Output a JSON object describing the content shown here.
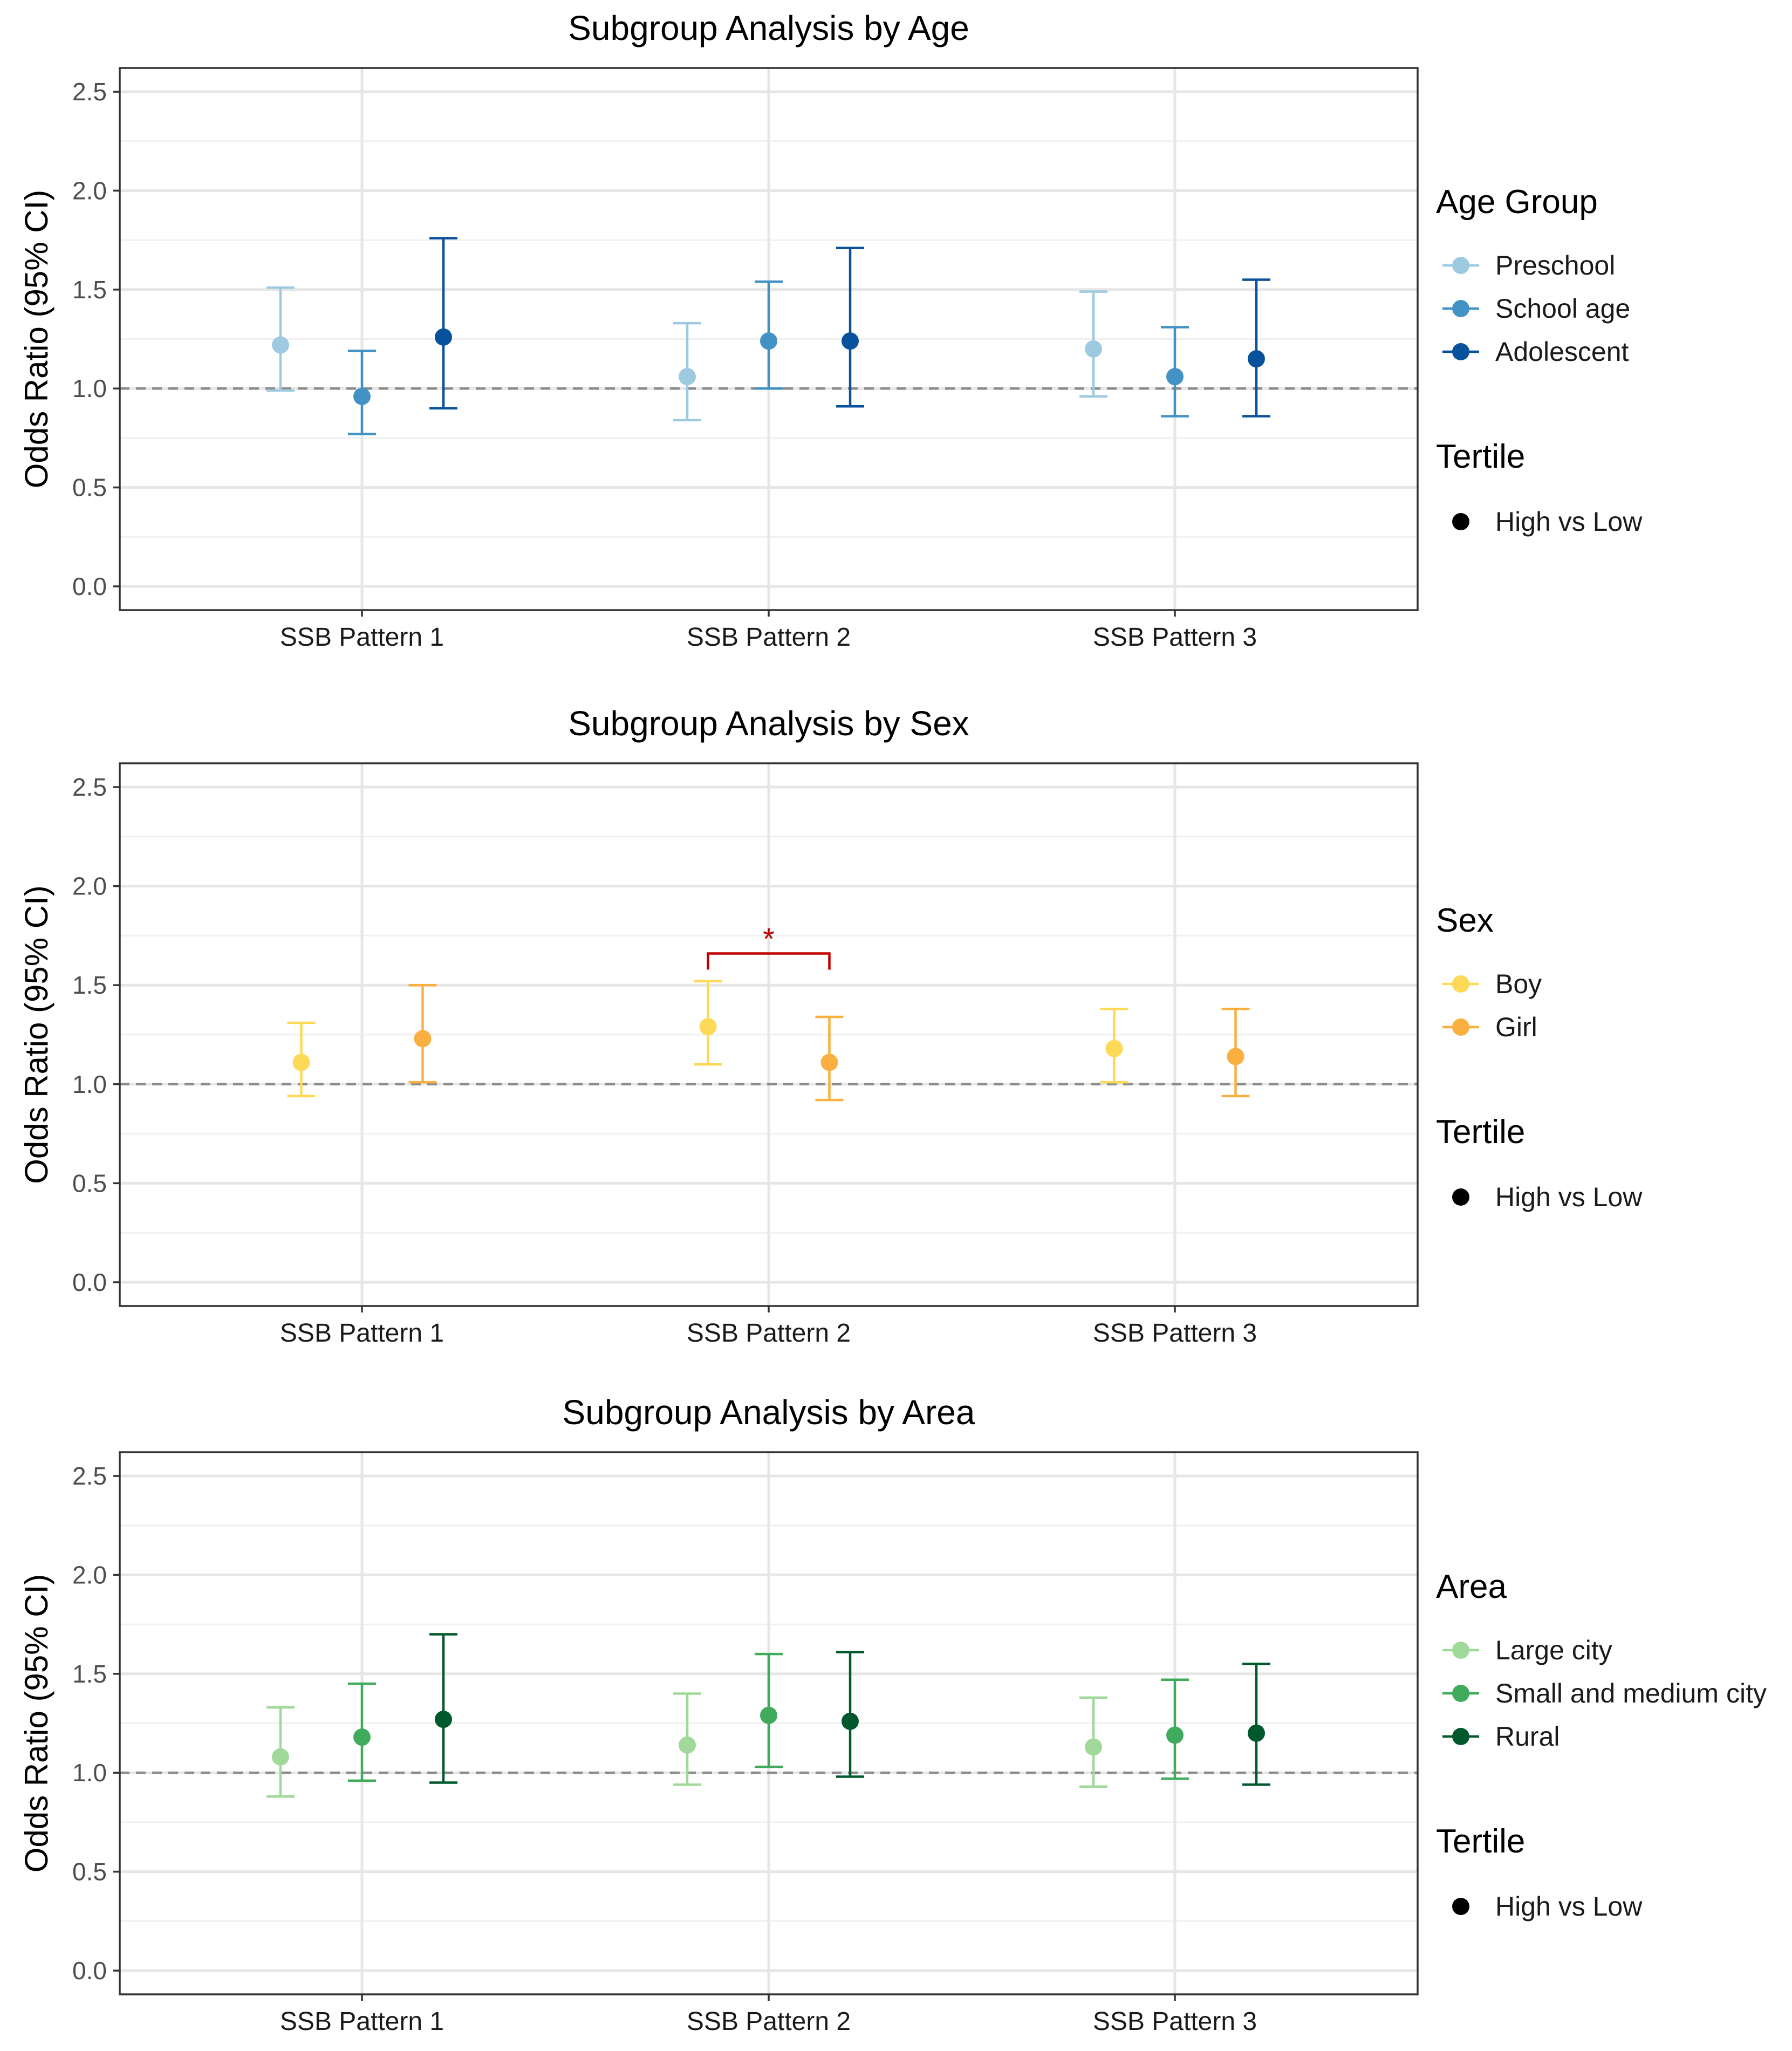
{
  "chart_data": [
    {
      "type": "errorbar",
      "title": "Subgroup Analysis by Age",
      "xlabel": "",
      "ylabel": "Odds Ratio (95% CI)",
      "ylim": [
        -0.12,
        2.62
      ],
      "yticks": [
        "0.0",
        "0.5",
        "1.0",
        "1.5",
        "2.0",
        "2.5"
      ],
      "reference_line": 1.0,
      "categories": [
        "SSB Pattern 1",
        "SSB Pattern 2",
        "SSB Pattern 3"
      ],
      "legend_title": "Age Group",
      "legend_position": "right",
      "series": [
        {
          "name": "Preschool",
          "color": "#9ecae1",
          "values": [
            1.22,
            1.06,
            1.2
          ],
          "lower": [
            0.99,
            0.84,
            0.96
          ],
          "upper": [
            1.51,
            1.33,
            1.49
          ]
        },
        {
          "name": "School age",
          "color": "#4292c6",
          "values": [
            0.96,
            1.24,
            1.06
          ],
          "lower": [
            0.77,
            1.0,
            0.86
          ],
          "upper": [
            1.19,
            1.54,
            1.31
          ]
        },
        {
          "name": "Adolescent",
          "color": "#08519c",
          "values": [
            1.26,
            1.24,
            1.15
          ],
          "lower": [
            0.9,
            0.91,
            0.86
          ],
          "upper": [
            1.76,
            1.71,
            1.55
          ]
        }
      ],
      "shape_legend_title": "Tertile",
      "shape_legend_item": "High vs Low",
      "annotations": []
    },
    {
      "type": "errorbar",
      "title": "Subgroup Analysis by Sex",
      "xlabel": "",
      "ylabel": "Odds Ratio (95% CI)",
      "ylim": [
        -0.12,
        2.62
      ],
      "yticks": [
        "0.0",
        "0.5",
        "1.0",
        "1.5",
        "2.0",
        "2.5"
      ],
      "reference_line": 1.0,
      "categories": [
        "SSB Pattern 1",
        "SSB Pattern 2",
        "SSB Pattern 3"
      ],
      "legend_title": "Sex",
      "legend_position": "right",
      "series": [
        {
          "name": "Boy",
          "color": "#fed957",
          "values": [
            1.11,
            1.29,
            1.18
          ],
          "lower": [
            0.94,
            1.1,
            1.01
          ],
          "upper": [
            1.31,
            1.52,
            1.38
          ]
        },
        {
          "name": "Girl",
          "color": "#f9b040",
          "values": [
            1.23,
            1.11,
            1.14
          ],
          "lower": [
            1.01,
            0.92,
            0.94
          ],
          "upper": [
            1.5,
            1.34,
            1.38
          ]
        }
      ],
      "shape_legend_title": "Tertile",
      "shape_legend_item": "High vs Low",
      "annotations": [
        {
          "label": "*",
          "category": "SSB Pattern 2",
          "y": 1.66,
          "color": "#c00000"
        }
      ]
    },
    {
      "type": "errorbar",
      "title": "Subgroup Analysis by Area",
      "xlabel": "",
      "ylabel": "Odds Ratio (95% CI)",
      "ylim": [
        -0.12,
        2.62
      ],
      "yticks": [
        "0.0",
        "0.5",
        "1.0",
        "1.5",
        "2.0",
        "2.5"
      ],
      "reference_line": 1.0,
      "categories": [
        "SSB Pattern 1",
        "SSB Pattern 2",
        "SSB Pattern 3"
      ],
      "legend_title": "Area",
      "legend_position": "right",
      "series": [
        {
          "name": "Large city",
          "color": "#a1d99b",
          "values": [
            1.08,
            1.14,
            1.13
          ],
          "lower": [
            0.88,
            0.94,
            0.93
          ],
          "upper": [
            1.33,
            1.4,
            1.38
          ]
        },
        {
          "name": "Small and medium city",
          "color": "#41ab5d",
          "values": [
            1.18,
            1.29,
            1.19
          ],
          "lower": [
            0.96,
            1.03,
            0.97
          ],
          "upper": [
            1.45,
            1.6,
            1.47
          ]
        },
        {
          "name": "Rural",
          "color": "#00592c",
          "values": [
            1.27,
            1.26,
            1.2
          ],
          "lower": [
            0.95,
            0.98,
            0.94
          ],
          "upper": [
            1.7,
            1.61,
            1.55
          ]
        }
      ],
      "shape_legend_title": "Tertile",
      "shape_legend_item": "High vs Low",
      "annotations": []
    }
  ]
}
